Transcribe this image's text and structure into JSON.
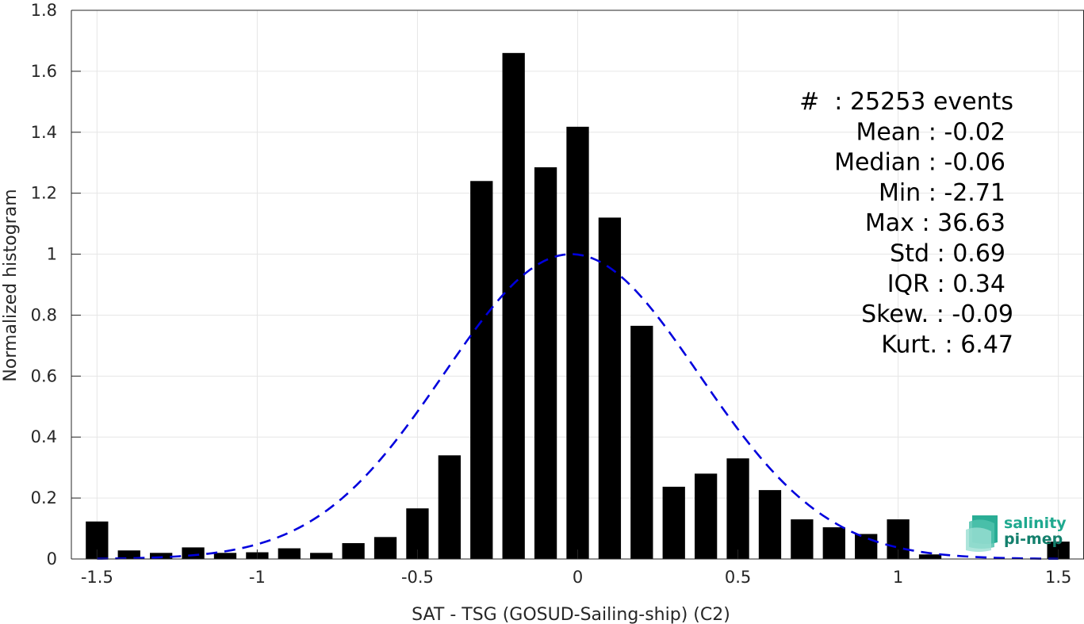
{
  "chart_data": {
    "type": "bar",
    "xlabel": "SAT - TSG (GOSUD-Sailing-ship) (C2)",
    "ylabel": "Normalized histogram",
    "xlim": [
      -1.58,
      1.58
    ],
    "ylim": [
      0,
      1.8
    ],
    "xticks": [
      -1.5,
      -1,
      -0.5,
      0,
      0.5,
      1,
      1.5
    ],
    "xtick_labels": [
      "-1.5",
      "-1",
      "-0.5",
      "0",
      "0.5",
      "1",
      "1.5"
    ],
    "yticks": [
      0,
      0.2,
      0.4,
      0.6,
      0.8,
      1,
      1.2,
      1.4,
      1.6,
      1.8
    ],
    "ytick_labels": [
      "0",
      "0.2",
      "0.4",
      "0.6",
      "0.8",
      "1",
      "1.2",
      "1.4",
      "1.6",
      "1.8"
    ],
    "grid": true,
    "bin_width": 0.1,
    "bars": {
      "x": [
        -1.5,
        -1.4,
        -1.3,
        -1.2,
        -1.1,
        -1.0,
        -0.9,
        -0.8,
        -0.7,
        -0.6,
        -0.5,
        -0.4,
        -0.3,
        -0.2,
        -0.1,
        0.0,
        0.1,
        0.2,
        0.3,
        0.4,
        0.5,
        0.6,
        0.7,
        0.8,
        0.9,
        1.0,
        1.1,
        1.2,
        1.3,
        1.4,
        1.5
      ],
      "values": [
        0.123,
        0.028,
        0.02,
        0.038,
        0.02,
        0.022,
        0.035,
        0.02,
        0.052,
        0.072,
        0.166,
        0.34,
        1.24,
        1.66,
        1.285,
        1.418,
        1.12,
        0.765,
        0.237,
        0.28,
        0.33,
        0.226,
        0.13,
        0.104,
        0.082,
        0.13,
        0.015,
        0,
        0,
        0,
        0.057
      ],
      "color": "#000000"
    },
    "fit_curve": {
      "style": "dashed",
      "color": "#0000dd",
      "mean": -0.02,
      "std": 0.398,
      "peak": 1.0,
      "x_range": [
        -1.5,
        1.5
      ]
    },
    "annotation": {
      "lines": [
        "#  : 25253 events",
        "Mean : -0.02",
        "Median : -0.06",
        "Min : -2.71",
        "Max : 36.63",
        "Std : 0.69",
        "IQR : 0.34",
        "Skew. : -0.09",
        "Kurt. : 6.47"
      ],
      "placement": "top-right"
    }
  },
  "logo": {
    "line1": "salinity",
    "line2": "pi-mep",
    "color": "#1fa98f"
  }
}
